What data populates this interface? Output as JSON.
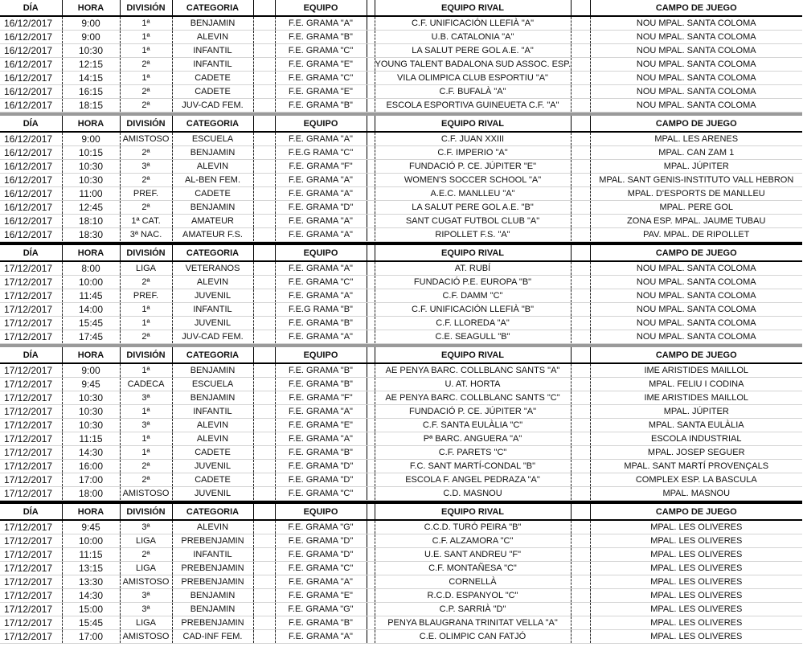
{
  "headers": {
    "dia": "DÍA",
    "hora": "HORA",
    "division": "DIVISIÓN",
    "categoria": "CATEGORIA",
    "equipo": "EQUIPO",
    "rival": "EQUIPO RIVAL",
    "campo": "CAMPO DE JUEGO"
  },
  "separator_colors": {
    "gray": "#9a9a9a",
    "black": "#000000"
  },
  "sections": [
    {
      "separator_after": "gray",
      "rows": [
        [
          "16/12/2017",
          "9:00",
          "1ª",
          "BENJAMIN",
          "F.E. GRAMA \"A\"",
          "C.F. UNIFICACIÓN LLEFIÀ \"A\"",
          "NOU MPAL. SANTA COLOMA"
        ],
        [
          "16/12/2017",
          "9:00",
          "1ª",
          "ALEVIN",
          "F.E. GRAMA \"B\"",
          "U.B. CATALONIA \"A\"",
          "NOU MPAL. SANTA COLOMA"
        ],
        [
          "16/12/2017",
          "10:30",
          "1ª",
          "INFANTIL",
          "F.E. GRAMA \"C\"",
          "LA SALUT PERE GOL A.E. \"A\"",
          "NOU MPAL. SANTA COLOMA"
        ],
        [
          "16/12/2017",
          "12:15",
          "2ª",
          "INFANTIL",
          "F.E. GRAMA \"E\"",
          "YOUNG TALENT BADALONA SUD ASSOC. ESP. \"C\"",
          "NOU MPAL. SANTA COLOMA"
        ],
        [
          "16/12/2017",
          "14:15",
          "1ª",
          "CADETE",
          "F.E. GRAMA \"C\"",
          "VILA OLIMPICA CLUB ESPORTIU \"A\"",
          "NOU MPAL. SANTA COLOMA"
        ],
        [
          "16/12/2017",
          "16:15",
          "2ª",
          "CADETE",
          "F.E. GRAMA \"E\"",
          "C.F. BUFALÀ \"A\"",
          "NOU MPAL. SANTA COLOMA"
        ],
        [
          "16/12/2017",
          "18:15",
          "2ª",
          "JUV-CAD FEM.",
          "F.E. GRAMA \"B\"",
          "ESCOLA ESPORTIVA GUINEUETA C.F. \"A\"",
          "NOU MPAL. SANTA COLOMA"
        ]
      ]
    },
    {
      "separator_after": "black",
      "rows": [
        [
          "16/12/2017",
          "9:00",
          "AMISTOSO",
          "ESCUELA",
          "F.E. GRAMA \"A\"",
          "C.F. JUAN XXIII",
          "MPAL. LES ARENES"
        ],
        [
          "16/12/2017",
          "10:15",
          "2ª",
          "BENJAMIN",
          "F.E.G RAMA \"C\"",
          "C.F. IMPERIO \"A\"",
          "MPAL. CAN ZAM 1"
        ],
        [
          "16/12/2017",
          "10:30",
          "3ª",
          "ALEVIN",
          "F.E. GRAMA \"F\"",
          "FUNDACIÓ P. CE. JÚPITER \"E\"",
          "MPAL. JÚPITER"
        ],
        [
          "16/12/2017",
          "10:30",
          "2ª",
          "AL-BEN FEM.",
          "F.E. GRAMA \"A\"",
          "WOMEN'S SOCCER SCHOOL \"A\"",
          "MPAL. SANT GENIS-INSTITUTO VALL HEBRON"
        ],
        [
          "16/12/2017",
          "11:00",
          "PREF.",
          "CADETE",
          "F.E. GRAMA \"A\"",
          "A.E.C. MANLLEU \"A\"",
          "MPAL. D'ESPORTS DE MANLLEU"
        ],
        [
          "16/12/2017",
          "12:45",
          "2ª",
          "BENJAMIN",
          "F.E. GRAMA \"D\"",
          "LA SALUT PERE GOL A.E. \"B\"",
          "MPAL. PERE GOL"
        ],
        [
          "16/12/2017",
          "18:10",
          "1ª CAT.",
          "AMATEUR",
          "F.E. GRAMA \"A\"",
          "SANT CUGAT FUTBOL CLUB \"A\"",
          "ZONA ESP. MPAL. JAUME TUBAU"
        ],
        [
          "16/12/2017",
          "18:30",
          "3ª NAC.",
          "AMATEUR F.S.",
          "F.E. GRAMA \"A\"",
          "RIPOLLET F.S. \"A\"",
          "PAV. MPAL. DE RIPOLLET"
        ]
      ]
    },
    {
      "separator_after": "gray",
      "rows": [
        [
          "17/12/2017",
          "8:00",
          "LIGA",
          "VETERANOS",
          "F.E. GRAMA \"A\"",
          "AT. RUBÍ",
          "NOU MPAL. SANTA COLOMA"
        ],
        [
          "17/12/2017",
          "10:00",
          "2ª",
          "ALEVIN",
          "F.E. GRAMA \"C\"",
          "FUNDACIÓ P.E. EUROPA \"B\"",
          "NOU MPAL. SANTA COLOMA"
        ],
        [
          "17/12/2017",
          "11:45",
          "PREF.",
          "JUVENIL",
          "F.E. GRAMA \"A\"",
          "C.F. DAMM \"C\"",
          "NOU MPAL. SANTA COLOMA"
        ],
        [
          "17/12/2017",
          "14:00",
          "1ª",
          "INFANTIL",
          "F.E.G RAMA \"B\"",
          "C.F. UNIFICACIÓN LLEFIÀ \"B\"",
          "NOU MPAL. SANTA COLOMA"
        ],
        [
          "17/12/2017",
          "15:45",
          "1ª",
          "JUVENIL",
          "F.E. GRAMA \"B\"",
          "C.F. LLOREDA \"A\"",
          "NOU MPAL. SANTA COLOMA"
        ],
        [
          "17/12/2017",
          "17:45",
          "2ª",
          "JUV-CAD FEM.",
          "F.E. GRAMA \"A\"",
          "C.E. SEAGULL \"B\"",
          "NOU MPAL. SANTA COLOMA"
        ]
      ]
    },
    {
      "separator_after": "black",
      "rows": [
        [
          "17/12/2017",
          "9:00",
          "1ª",
          "BENJAMIN",
          "F.E. GRAMA \"B\"",
          "AE PENYA BARC. COLLBLANC SANTS \"A\"",
          "IME ARISTIDES MAILLOL"
        ],
        [
          "17/12/2017",
          "9:45",
          "CADECA",
          "ESCUELA",
          "F.E. GRAMA \"B\"",
          "U. AT. HORTA",
          "MPAL. FELIU I CODINA"
        ],
        [
          "17/12/2017",
          "10:30",
          "3ª",
          "BENJAMIN",
          "F.E. GRAMA \"F\"",
          "AE PENYA BARC. COLLBLANC SANTS \"C\"",
          "IME ARISTIDES MAILLOL"
        ],
        [
          "17/12/2017",
          "10:30",
          "1ª",
          "INFANTIL",
          "F.E. GRAMA \"A\"",
          "FUNDACIÓ P. CE. JÚPITER \"A\"",
          "MPAL. JÚPITER"
        ],
        [
          "17/12/2017",
          "10:30",
          "3ª",
          "ALEVIN",
          "F.E. GRAMA \"E\"",
          "C.F. SANTA EULÀLIA \"C\"",
          "MPAL. SANTA EULÀLIA"
        ],
        [
          "17/12/2017",
          "11:15",
          "1ª",
          "ALEVIN",
          "F.E. GRAMA \"A\"",
          "Pª BARC. ANGUERA \"A\"",
          "ESCOLA INDUSTRIAL"
        ],
        [
          "17/12/2017",
          "14:30",
          "1ª",
          "CADETE",
          "F.E. GRAMA \"B\"",
          "C.F. PARETS \"C\"",
          "MPAL. JOSEP SEGUER"
        ],
        [
          "17/12/2017",
          "16:00",
          "2ª",
          "JUVENIL",
          "F.E. GRAMA \"D\"",
          "F.C. SANT MARTÍ-CONDAL \"B\"",
          "MPAL. SANT MARTÍ PROVENÇALS"
        ],
        [
          "17/12/2017",
          "17:00",
          "2ª",
          "CADETE",
          "F.E. GRAMA \"D\"",
          "ESCOLA F. ANGEL PEDRAZA \"A\"",
          "COMPLEX ESP. LA BASCULA"
        ],
        [
          "17/12/2017",
          "18:00",
          "AMISTOSO",
          "JUVENIL",
          "F.E. GRAMA \"C\"",
          "C.D. MASNOU",
          "MPAL. MASNOU"
        ]
      ]
    },
    {
      "separator_after": "",
      "rows": [
        [
          "17/12/2017",
          "9:45",
          "3ª",
          "ALEVIN",
          "F.E. GRAMA \"G\"",
          "C.C.D. TURÓ PEIRA \"B\"",
          "MPAL. LES OLIVERES"
        ],
        [
          "17/12/2017",
          "10:00",
          "LIGA",
          "PREBENJAMIN",
          "F.E. GRAMA \"D\"",
          "C.F. ALZAMORA \"C\"",
          "MPAL. LES OLIVERES"
        ],
        [
          "17/12/2017",
          "11:15",
          "2ª",
          "INFANTIL",
          "F.E. GRAMA \"D\"",
          "U.E. SANT ANDREU \"F\"",
          "MPAL. LES OLIVERES"
        ],
        [
          "17/12/2017",
          "13:15",
          "LIGA",
          "PREBENJAMIN",
          "F.E. GRAMA \"C\"",
          "C.F. MONTAÑESA \"C\"",
          "MPAL. LES OLIVERES"
        ],
        [
          "17/12/2017",
          "13:30",
          "AMISTOSO",
          "PREBENJAMIN",
          "F.E. GRAMA \"A\"",
          "CORNELLÀ",
          "MPAL. LES OLIVERES"
        ],
        [
          "17/12/2017",
          "14:30",
          "3ª",
          "BENJAMIN",
          "F.E. GRAMA \"E\"",
          "R.C.D. ESPANYOL \"C\"",
          "MPAL. LES OLIVERES"
        ],
        [
          "17/12/2017",
          "15:00",
          "3ª",
          "BENJAMIN",
          "F.E. GRAMA \"G\"",
          "C.P. SARRIÀ \"D\"",
          "MPAL. LES OLIVERES"
        ],
        [
          "17/12/2017",
          "15:45",
          "LIGA",
          "PREBENJAMIN",
          "F.E. GRAMA \"B\"",
          "PENYA BLAUGRANA TRINITAT VELLA \"A\"",
          "MPAL. LES OLIVERES"
        ],
        [
          "17/12/2017",
          "17:00",
          "AMISTOSO",
          "CAD-INF FEM.",
          "F.E. GRAMA \"A\"",
          "C.E. OLIMPIC CAN FATJÓ",
          "MPAL. LES OLIVERES"
        ]
      ]
    }
  ]
}
